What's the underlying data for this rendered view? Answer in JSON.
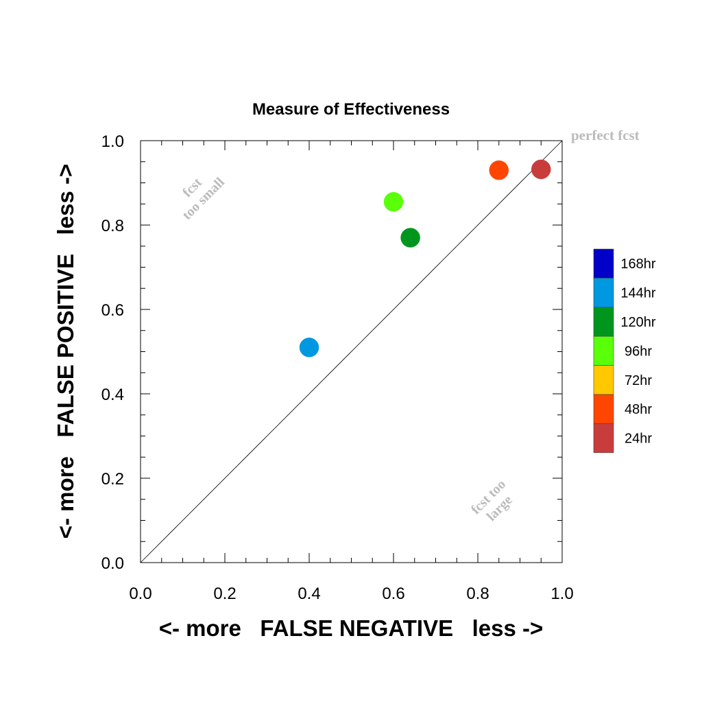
{
  "chart_data": {
    "type": "scatter",
    "title": "Measure of Effectiveness",
    "xlabel": "<- more   FALSE NEGATIVE   less ->",
    "ylabel": "<- more   FALSE POSITIVE   less ->",
    "xlim": [
      0.0,
      1.0
    ],
    "ylim": [
      0.0,
      1.0
    ],
    "x_ticks": [
      "0.0",
      "0.2",
      "0.4",
      "0.6",
      "0.8",
      "1.0"
    ],
    "y_ticks": [
      "0.0",
      "0.2",
      "0.4",
      "0.6",
      "0.8",
      "1.0"
    ],
    "grid": false,
    "diagonal_line": true,
    "annotations": {
      "perfect": "perfect fcst",
      "too_small_line1": "fcst",
      "too_small_line2": "too small",
      "too_large_line1": "fcst too",
      "too_large_line2": "large"
    },
    "legend": {
      "placement": "right",
      "entries": [
        {
          "label": "168hr",
          "color": "#0000c8"
        },
        {
          "label": "144hr",
          "color": "#0098e0"
        },
        {
          "label": "120hr",
          "color": "#00961e"
        },
        {
          "label": "96hr",
          "color": "#5aff0a"
        },
        {
          "label": "72hr",
          "color": "#ffc800"
        },
        {
          "label": "48hr",
          "color": "#ff4600"
        },
        {
          "label": "24hr",
          "color": "#c83c3c"
        }
      ]
    },
    "points": [
      {
        "x": 0.4,
        "y": 0.51,
        "color": "#0098e0"
      },
      {
        "x": 0.64,
        "y": 0.77,
        "color": "#00961e"
      },
      {
        "x": 0.6,
        "y": 0.855,
        "color": "#5aff0a"
      },
      {
        "x": 0.85,
        "y": 0.93,
        "color": "#ff4600"
      },
      {
        "x": 0.95,
        "y": 0.932,
        "color": "#c83c3c"
      }
    ]
  }
}
